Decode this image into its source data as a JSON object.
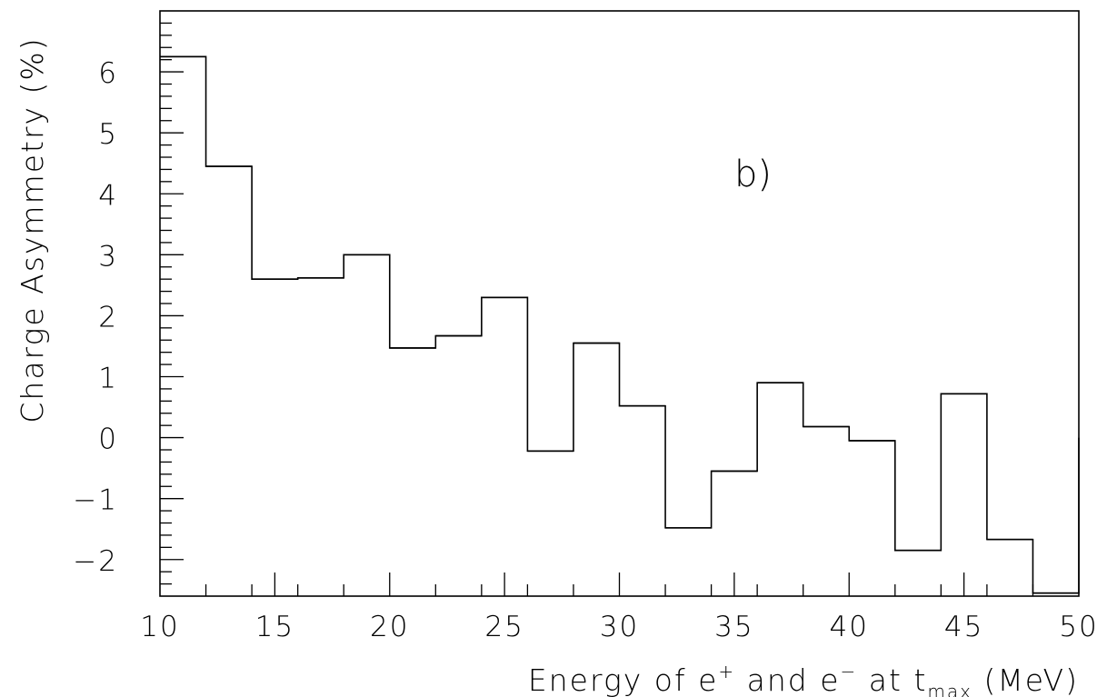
{
  "chart_data": {
    "type": "histogram-step",
    "xlabel": "Energy of e⁺ and e⁻ at t_max (MeV)",
    "xlabel_parts": {
      "pre": "Energy of e",
      "sup1": "+",
      "mid": " and e",
      "sup2": "−",
      "mid2": " at t",
      "sub": "max",
      "post": " (MeV)"
    },
    "ylabel": "Charge Asymmetry (%)",
    "annotation": "b)",
    "xlim": [
      10,
      50
    ],
    "ylim": [
      -2.6,
      7.0
    ],
    "x_ticks": [
      10,
      15,
      20,
      25,
      30,
      35,
      40,
      45,
      50
    ],
    "y_ticks": [
      -2,
      -1,
      0,
      1,
      2,
      3,
      4,
      5,
      6
    ],
    "bin_edges": [
      10,
      12,
      14,
      16,
      18,
      20,
      22,
      24,
      26,
      28,
      30,
      32,
      34,
      36,
      38,
      40,
      42,
      44,
      46,
      48,
      50
    ],
    "values": [
      6.25,
      4.45,
      2.6,
      2.62,
      3.0,
      1.47,
      1.67,
      2.3,
      -0.22,
      1.55,
      0.52,
      -1.48,
      -0.55,
      0.9,
      0.18,
      -0.05,
      -1.85,
      0.72,
      -1.67,
      -2.55
    ],
    "line_color": "#000000"
  }
}
